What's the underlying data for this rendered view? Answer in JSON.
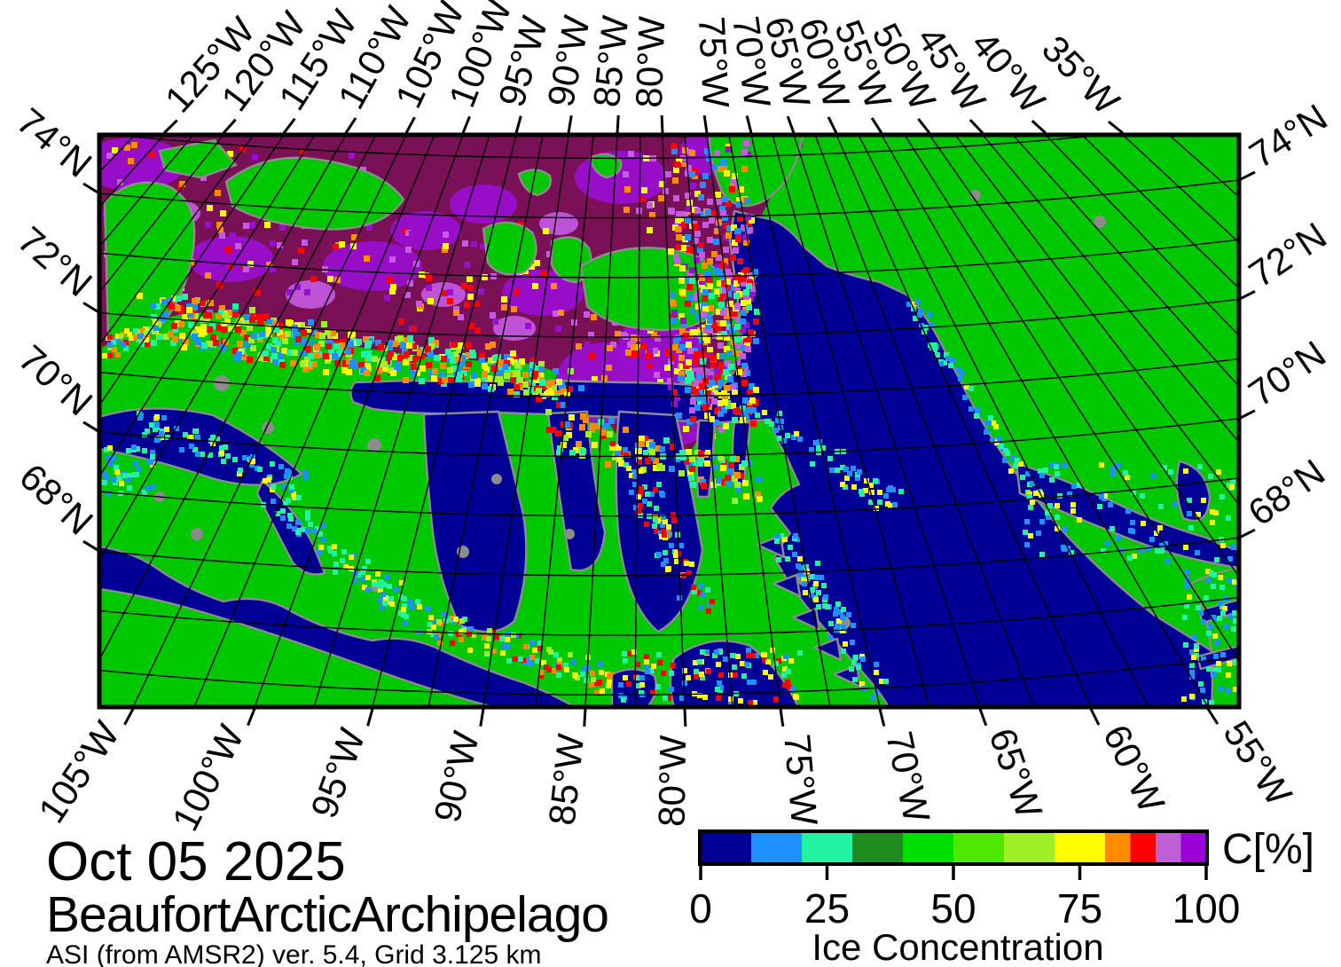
{
  "figure": {
    "date": "Oct 05 2025",
    "region": "BeaufortArcticArchipelago",
    "attribution": "ASI (from AMSR2) ver. 5.4,  Grid 3.125 km"
  },
  "axis_labels": {
    "top": [
      "125°W",
      "120°W",
      "115°W",
      "110°W",
      "105°W",
      "100°W",
      "95°W",
      "90°W",
      "85°W",
      "80°W",
      "75°W",
      "70°W",
      "65°W",
      "60°W",
      "55°W",
      "50°W",
      "45°W",
      "40°W",
      "35°W"
    ],
    "bottom": [
      "105°W",
      "100°W",
      "95°W",
      "90°W",
      "85°W",
      "80°W",
      "75°W",
      "70°W",
      "65°W",
      "60°W",
      "55°W"
    ],
    "left": [
      "74°N",
      "72°N",
      "70°N",
      "68°N"
    ],
    "right": [
      "74°N",
      "72°N",
      "70°N",
      "68°N"
    ]
  },
  "colorbar": {
    "unit_label": "C[%]",
    "axis_title": "Ice Concentration",
    "tick_labels": [
      "0",
      "25",
      "50",
      "75",
      "100"
    ],
    "tick_values": [
      0,
      25,
      50,
      75,
      100
    ],
    "segments": [
      {
        "from": 0,
        "to": 10,
        "color": "#000096"
      },
      {
        "from": 10,
        "to": 20,
        "color": "#1E90FF"
      },
      {
        "from": 20,
        "to": 30,
        "color": "#21F3A2"
      },
      {
        "from": 30,
        "to": 40,
        "color": "#1F8B1F"
      },
      {
        "from": 40,
        "to": 50,
        "color": "#00E000"
      },
      {
        "from": 50,
        "to": 60,
        "color": "#50E800"
      },
      {
        "from": 60,
        "to": 70,
        "color": "#A0F028"
      },
      {
        "from": 70,
        "to": 80,
        "color": "#FFFF00"
      },
      {
        "from": 80,
        "to": 85,
        "color": "#FF8C00"
      },
      {
        "from": 85,
        "to": 90,
        "color": "#FF0000"
      },
      {
        "from": 90,
        "to": 95,
        "color": "#BE5FD6"
      },
      {
        "from": 95,
        "to": 100,
        "color": "#9B00D9"
      }
    ]
  },
  "map_colors": {
    "land": "#00C800",
    "open_water": "#000096",
    "pack_ice": "#7A1055",
    "ice_purple": "#9A0ED2",
    "ice_orchid": "#C55BE3",
    "coastline": "#8C8C8C",
    "grid": "#000000",
    "frame": "#000000",
    "background": "#FFFFFF"
  }
}
